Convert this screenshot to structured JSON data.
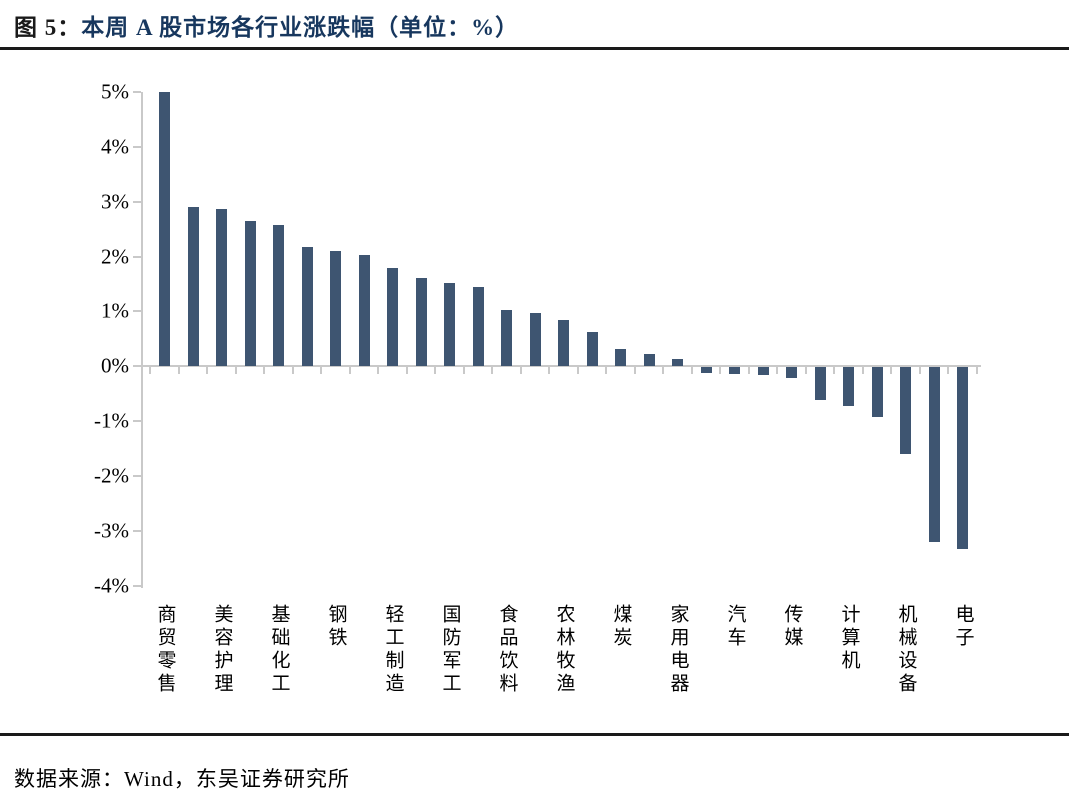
{
  "figure": {
    "caption_prefix": "图 5：",
    "caption_title": "本周 A 股市场各行业涨跌幅（单位：%）",
    "source_note": "数据来源：Wind，东吴证券研究所"
  },
  "colors": {
    "bar": "#3E5571",
    "caption_prefix": "#1A1A1A",
    "caption_title": "#17375E",
    "axis": "#C9C9C9",
    "text": "#000000"
  },
  "chart_data": {
    "type": "bar",
    "title": "本周A股市场各行业涨跌幅",
    "unit": "%",
    "ylim": [
      -4,
      5
    ],
    "y_tick_labels": [
      "5%",
      "4%",
      "3%",
      "2%",
      "1%",
      "0%",
      "-1%",
      "-2%",
      "-3%",
      "-4%"
    ],
    "grid": false,
    "legend": null,
    "note": "labels shown only for every other bar in source image",
    "bars": [
      {
        "label": "商贸零售",
        "value": 5.0
      },
      {
        "label": "",
        "value": 2.9
      },
      {
        "label": "美容护理",
        "value": 2.87
      },
      {
        "label": "",
        "value": 2.65
      },
      {
        "label": "基础化工",
        "value": 2.57
      },
      {
        "label": "",
        "value": 2.18
      },
      {
        "label": "钢铁",
        "value": 2.1
      },
      {
        "label": "",
        "value": 2.03
      },
      {
        "label": "轻工制造",
        "value": 1.8
      },
      {
        "label": "",
        "value": 1.6
      },
      {
        "label": "国防军工",
        "value": 1.52
      },
      {
        "label": "",
        "value": 1.45
      },
      {
        "label": "食品饮料",
        "value": 1.03
      },
      {
        "label": "",
        "value": 0.97
      },
      {
        "label": "农林牧渔",
        "value": 0.85
      },
      {
        "label": "",
        "value": 0.63
      },
      {
        "label": "煤炭",
        "value": 0.32
      },
      {
        "label": "",
        "value": 0.22
      },
      {
        "label": "家用电器",
        "value": 0.13
      },
      {
        "label": "",
        "value": -0.1
      },
      {
        "label": "汽车",
        "value": -0.12
      },
      {
        "label": "",
        "value": -0.15
      },
      {
        "label": "传媒",
        "value": -0.2
      },
      {
        "label": "",
        "value": -0.6
      },
      {
        "label": "计算机",
        "value": -0.7
      },
      {
        "label": "",
        "value": -0.9
      },
      {
        "label": "机械设备",
        "value": -1.58
      },
      {
        "label": "",
        "value": -3.18
      },
      {
        "label": "电子",
        "value": -3.32
      }
    ]
  }
}
